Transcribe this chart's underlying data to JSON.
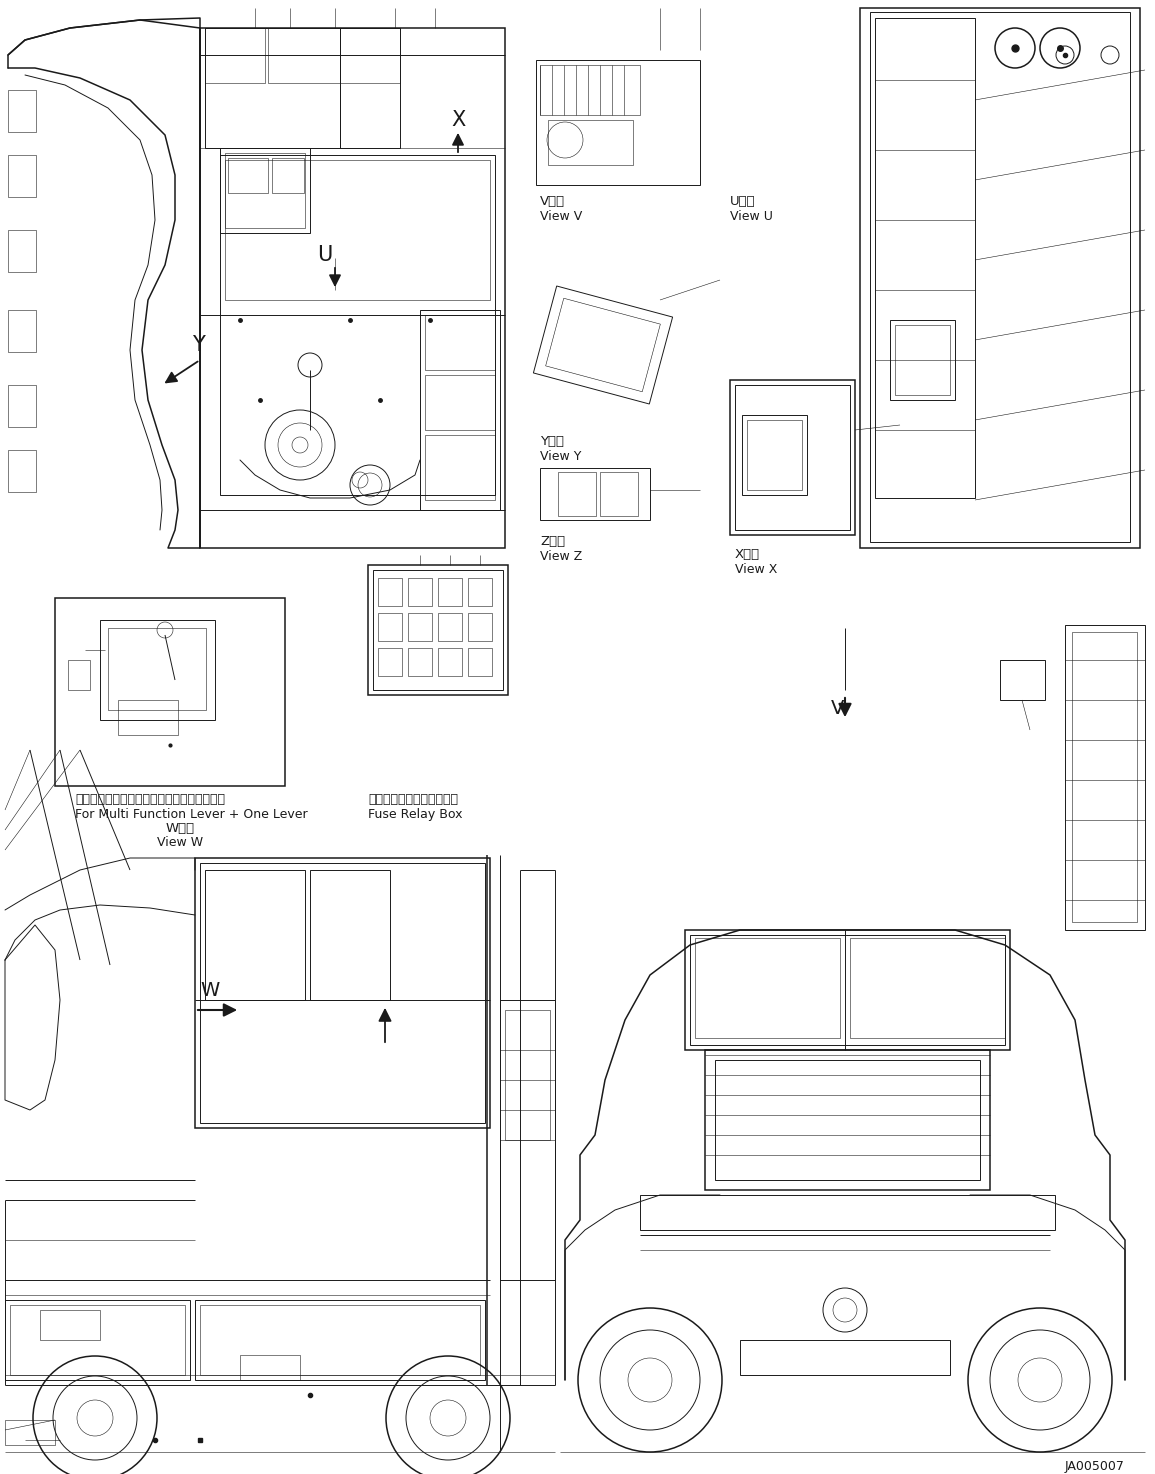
{
  "bg_color": "#ffffff",
  "line_color": "#1a1a1a",
  "fig_width": 11.55,
  "fig_height": 14.74,
  "dpi": 100,
  "code_label": "JA005007",
  "caption1_jp": "マルチファンクションレバー＋１本レバー用",
  "caption1_en": "For Multi Function Lever + One Lever",
  "caption2_jp": "ヒューズ・リレーボックス",
  "caption2_en": "Fuse Relay Box",
  "label_V_jp": "V　視",
  "label_V_en": "View V",
  "label_U_jp": "U　視",
  "label_U_en": "View U",
  "label_Y_jp": "Y　視",
  "label_Y_en": "View Y",
  "label_Z_jp": "Z　視",
  "label_Z_en": "View Z",
  "label_X_jp": "X　視",
  "label_X_en": "View X",
  "label_W_jp": "W　視",
  "label_W_en": "View W"
}
